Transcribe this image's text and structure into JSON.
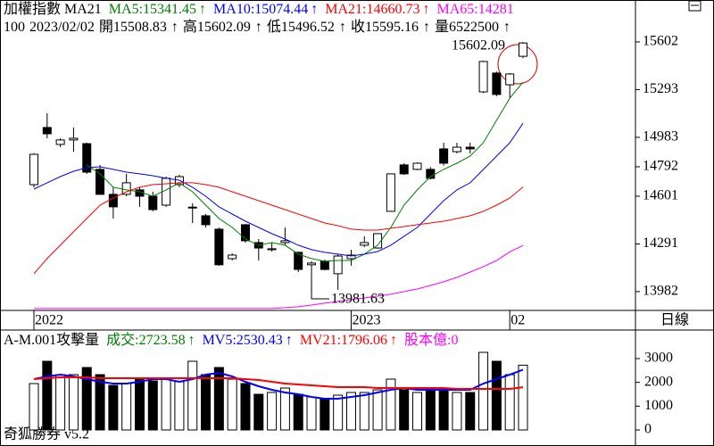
{
  "chart_data": [
    {
      "type": "candlestick",
      "title": "加權指數 MA21",
      "categories": [
        "2022",
        null,
        null,
        null,
        null,
        null,
        null,
        null,
        null,
        null,
        null,
        null,
        null,
        null,
        null,
        null,
        null,
        null,
        null,
        null,
        null,
        null,
        null,
        null,
        "2023",
        null,
        null,
        null,
        null,
        null,
        null,
        null,
        null,
        null,
        null,
        null,
        "02",
        null
      ],
      "open": [
        14676,
        15047,
        14937,
        14966,
        14942,
        14775,
        14613,
        14613,
        14642,
        14601,
        14543,
        14676,
        14526,
        14474,
        14387,
        14196,
        14416,
        14300,
        14254,
        14300,
        14237,
        14156,
        14179,
        14098,
        14196,
        14283,
        14265,
        14503,
        14804,
        14775,
        14775,
        14908,
        14890,
        14919,
        15278,
        15400,
        15324,
        15508.83
      ],
      "high": [
        14879,
        15139,
        14977,
        15047,
        14948,
        14804,
        14659,
        14746,
        14659,
        14630,
        14728,
        14740,
        14555,
        14485,
        14398,
        14230,
        14420,
        14323,
        14300,
        14398,
        14240,
        14179,
        14190,
        14225,
        14254,
        14341,
        14358,
        14746,
        14815,
        14820,
        14790,
        14948,
        14948,
        14948,
        15480,
        15410,
        15400,
        15602.09
      ],
      "low": [
        14659,
        14977,
        14919,
        14890,
        14746,
        14610,
        14456,
        14601,
        14532,
        14503,
        14532,
        14660,
        14427,
        14398,
        14150,
        14184,
        14300,
        14184,
        14242,
        14283,
        14109,
        13981.63,
        14120,
        13993,
        14150,
        14271,
        14260,
        14500,
        14740,
        14770,
        14710,
        14800,
        14879,
        14879,
        15270,
        15250,
        15240,
        15496.52
      ],
      "close": [
        14873,
        15006,
        14966,
        14977,
        14757,
        14613,
        14532,
        14688,
        14601,
        14514,
        14717,
        14728,
        14530,
        14416,
        14156,
        14219,
        14312,
        14265,
        14260,
        14312,
        14126,
        14167,
        14126,
        14213,
        14219,
        14300,
        14358,
        14746,
        14746,
        14815,
        14717,
        14815,
        14919,
        14908,
        15475,
        15261,
        15394,
        15595.16
      ],
      "up_color": "#ffffff",
      "down_color": "#000000",
      "series": [
        {
          "name": "MA5:15341.45",
          "trend": "↑",
          "color": "#008000",
          "values": [
            null,
            null,
            null,
            null,
            14804,
            14746,
            14659,
            14642,
            14630,
            14601,
            14642,
            14688,
            14630,
            14543,
            14456,
            14398,
            14323,
            14283,
            14300,
            14283,
            14225,
            14196,
            14179,
            14184,
            14184,
            14225,
            14283,
            14398,
            14543,
            14642,
            14728,
            14775,
            14815,
            14861,
            14948,
            15093,
            15237,
            15341.45
          ]
        },
        {
          "name": "MA10:15074.44",
          "trend": "↑",
          "color": "#0000ff",
          "values": [
            14647,
            14688,
            14728,
            14763,
            14786,
            14792,
            14775,
            14757,
            14746,
            14734,
            14717,
            14705,
            14659,
            14601,
            14532,
            14485,
            14439,
            14398,
            14358,
            14323,
            14283,
            14254,
            14237,
            14225,
            14213,
            14225,
            14242,
            14283,
            14341,
            14398,
            14485,
            14572,
            14642,
            14688,
            14775,
            14861,
            14948,
            15074.44
          ]
        },
        {
          "name": "MA21:14660.73",
          "trend": "↑",
          "color": "#ff0000",
          "values": [
            14098,
            14196,
            14283,
            14370,
            14456,
            14543,
            14589,
            14630,
            14659,
            14676,
            14682,
            14688,
            14688,
            14676,
            14659,
            14630,
            14601,
            14572,
            14543,
            14514,
            14485,
            14456,
            14427,
            14410,
            14387,
            14381,
            14381,
            14393,
            14404,
            14416,
            14427,
            14439,
            14456,
            14474,
            14503,
            14543,
            14589,
            14660.73
          ]
        },
        {
          "name": "MA65:14281",
          "trend": "",
          "color": "#ff00ff",
          "values": [
            13872,
            13872,
            13872,
            13872,
            13872,
            13872,
            13872,
            13872,
            13872,
            13872,
            13872,
            13872,
            13872,
            13872,
            13872,
            13872,
            13872,
            13872,
            13872,
            13878,
            13884,
            13895,
            13907,
            13918,
            13930,
            13941,
            13953,
            13965,
            13982,
            13999,
            14022,
            14046,
            14074,
            14109,
            14144,
            14184,
            14240,
            14281
          ]
        }
      ],
      "info": [
        "100",
        "2023/02/02",
        "開15508.83",
        "↑",
        "高15602.09",
        "↑",
        "低15496.52",
        "↑",
        "收15595.16",
        "↑",
        "量6522500",
        "↑"
      ],
      "period": "日線",
      "ylim": [
        13860,
        15874
      ],
      "yticks": [
        15602,
        15293,
        14983,
        14792,
        14601,
        14291,
        13982
      ]
    },
    {
      "type": "volume",
      "title": "A-M.001攻擊量",
      "volume_name": "成交:2723.58",
      "volume_trend": "↑",
      "volume_color": "#008000",
      "values": [
        1950,
        2887,
        2325,
        2325,
        2625,
        2325,
        1875,
        1950,
        2137,
        2062,
        2137,
        2025,
        2887,
        2325,
        2625,
        2137,
        1950,
        1500,
        1575,
        1762,
        1500,
        1387,
        1312,
        1462,
        1575,
        1575,
        1687,
        2137,
        1687,
        1575,
        1687,
        1687,
        1575,
        1575,
        3262,
        2887,
        2325,
        2723.58
      ],
      "series": [
        {
          "name": "MV5:2530.43",
          "trend": "↑",
          "color": "#0000ff",
          "values": [
            2137,
            2250,
            2325,
            2250,
            2137,
            2025,
            1950,
            1950,
            2025,
            2137,
            2137,
            2025,
            2137,
            2325,
            2400,
            2250,
            2025,
            1837,
            1687,
            1575,
            1500,
            1387,
            1312,
            1312,
            1387,
            1462,
            1575,
            1687,
            1762,
            1687,
            1687,
            1687,
            1687,
            1687,
            1950,
            2137,
            2325,
            2530.43
          ]
        },
        {
          "name": "MV21:1796.06",
          "trend": "↑",
          "color": "#ff0000",
          "values": [
            2137,
            2175,
            2212,
            2212,
            2212,
            2175,
            2175,
            2175,
            2175,
            2175,
            2175,
            2175,
            2175,
            2175,
            2175,
            2175,
            2137,
            2100,
            2025,
            1950,
            1912,
            1875,
            1837,
            1800,
            1800,
            1800,
            1762,
            1762,
            1762,
            1762,
            1762,
            1762,
            1725,
            1725,
            1725,
            1725,
            1725,
            1796.06
          ]
        }
      ],
      "extra": {
        "text": "股本億:0",
        "color": "#ff00ff"
      },
      "footer": "奇狐勝券 v5.2",
      "ylim": [
        -675,
        4125
      ],
      "yticks": [
        3000,
        2000,
        1000,
        0
      ]
    }
  ]
}
